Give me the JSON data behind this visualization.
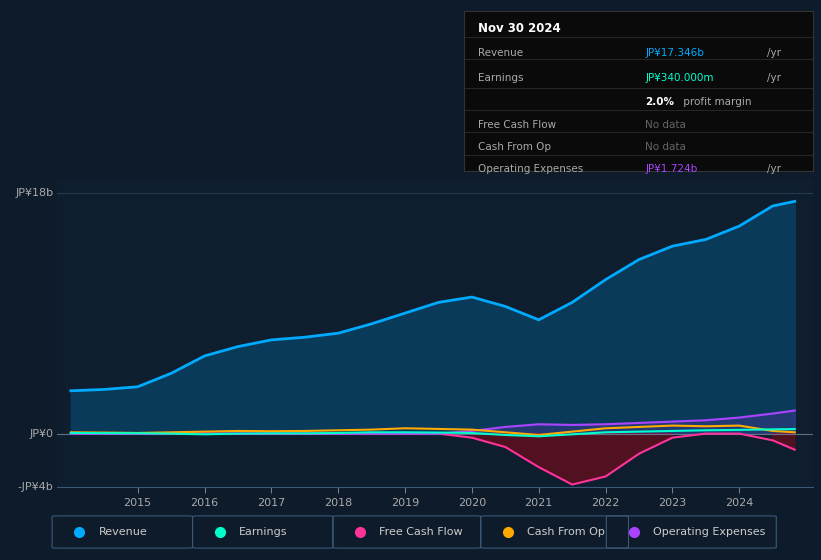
{
  "bg_color": "#0d1b2a",
  "plot_bg": "#0e1e2e",
  "ylabel_top": "JP¥18b",
  "ylabel_zero": "JP¥0",
  "ylabel_neg": "-JP¥4b",
  "ylim": [
    -4000000000,
    19000000000
  ],
  "x_years": [
    2014.0,
    2014.5,
    2015.0,
    2015.5,
    2016.0,
    2016.5,
    2017.0,
    2017.5,
    2018.0,
    2018.5,
    2019.0,
    2019.5,
    2020.0,
    2020.5,
    2021.0,
    2021.5,
    2022.0,
    2022.5,
    2023.0,
    2023.5,
    2024.0,
    2024.5,
    2024.83
  ],
  "revenue": [
    3200000000,
    3300000000,
    3500000000,
    4500000000,
    5800000000,
    6500000000,
    7000000000,
    7200000000,
    7500000000,
    8200000000,
    9000000000,
    9800000000,
    10200000000,
    9500000000,
    8500000000,
    9800000000,
    11500000000,
    13000000000,
    14000000000,
    14500000000,
    15500000000,
    17000000000,
    17346000000
  ],
  "earnings": [
    50000000,
    40000000,
    30000000,
    0,
    -50000000,
    0,
    20000000,
    20000000,
    50000000,
    100000000,
    100000000,
    80000000,
    50000000,
    -100000000,
    -200000000,
    -50000000,
    100000000,
    150000000,
    200000000,
    250000000,
    280000000,
    320000000,
    340000000
  ],
  "free_cash_flow": [
    0,
    0,
    0,
    0,
    0,
    0,
    0,
    0,
    0,
    0,
    0,
    0,
    -300000000,
    -1000000000,
    -2500000000,
    -3800000000,
    -3200000000,
    -1500000000,
    -300000000,
    0,
    0,
    -500000000,
    -1200000000
  ],
  "cash_from_op": [
    100000000,
    80000000,
    50000000,
    100000000,
    150000000,
    200000000,
    180000000,
    200000000,
    250000000,
    300000000,
    400000000,
    350000000,
    300000000,
    100000000,
    -100000000,
    150000000,
    400000000,
    500000000,
    600000000,
    550000000,
    600000000,
    200000000,
    100000000
  ],
  "op_expenses": [
    0,
    0,
    0,
    0,
    0,
    0,
    0,
    0,
    0,
    0,
    0,
    0,
    200000000,
    500000000,
    700000000,
    650000000,
    700000000,
    800000000,
    900000000,
    1000000000,
    1200000000,
    1500000000,
    1724000000
  ],
  "revenue_color": "#00aaff",
  "revenue_fill": "#0a3a5a",
  "earnings_color": "#00ffcc",
  "free_cash_flow_color": "#ff3399",
  "free_cash_flow_fill": "#5a1020",
  "cash_from_op_color": "#ffaa00",
  "op_expenses_color": "#aa44ff",
  "legend_items": [
    "Revenue",
    "Earnings",
    "Free Cash Flow",
    "Cash From Op",
    "Operating Expenses"
  ],
  "legend_colors": [
    "#00aaff",
    "#00ffcc",
    "#ff3399",
    "#ffaa00",
    "#aa44ff"
  ],
  "info_box": {
    "date": "Nov 30 2024",
    "revenue_label": "Revenue",
    "revenue_val": "JP¥17.346b",
    "revenue_unit": "/yr",
    "earnings_label": "Earnings",
    "earnings_val": "JP¥340.000m",
    "earnings_unit": "/yr",
    "profit_margin_pct": "2.0%",
    "profit_margin_text": " profit margin",
    "fcf_label": "Free Cash Flow",
    "fcf_val": "No data",
    "cfop_label": "Cash From Op",
    "cfop_val": "No data",
    "opex_label": "Operating Expenses",
    "opex_val": "JP¥1.724b",
    "opex_unit": "/yr"
  }
}
